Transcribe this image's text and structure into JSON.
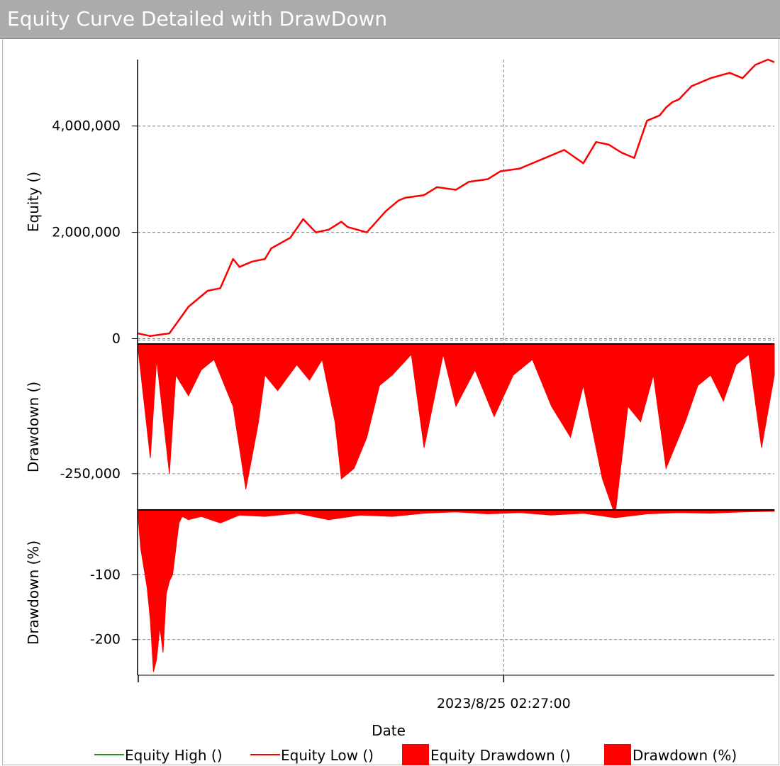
{
  "window": {
    "title": "Equity Curve Detailed with DrawDown"
  },
  "chart_data": {
    "type": "line",
    "xlabel": "Date",
    "x_ticks": [
      "2023/8/25 02:27:00"
    ],
    "legend_position": "bottom",
    "legend": [
      {
        "name": "Equity High ()",
        "color": "#2e8b2e",
        "marker": "line"
      },
      {
        "name": "Equity Low ()",
        "color": "#ff0000",
        "marker": "line"
      },
      {
        "name": "Equity Drawdown ()",
        "color": "#ff0000",
        "marker": "box"
      },
      {
        "name": "Drawdown (%)",
        "color": "#ff0000",
        "marker": "box"
      }
    ],
    "panels": [
      {
        "name": "equity",
        "ylabel": "Equity ()",
        "type": "line",
        "ylim": [
          -100000,
          5250000
        ],
        "yticks": [
          0,
          2000000,
          4000000
        ],
        "ytick_labels": [
          "0",
          "2,000,000",
          "4,000,000"
        ],
        "grid": true,
        "series": [
          {
            "name": "Equity Low ()",
            "color": "#ff0000",
            "x": [
              0,
              0.02,
              0.05,
              0.08,
              0.11,
              0.13,
              0.15,
              0.16,
              0.18,
              0.2,
              0.21,
              0.24,
              0.26,
              0.28,
              0.3,
              0.32,
              0.33,
              0.36,
              0.39,
              0.41,
              0.42,
              0.45,
              0.47,
              0.5,
              0.52,
              0.55,
              0.57,
              0.6,
              0.64,
              0.67,
              0.7,
              0.72,
              0.74,
              0.76,
              0.78,
              0.8,
              0.82,
              0.83,
              0.84,
              0.85,
              0.87,
              0.9,
              0.93,
              0.95,
              0.97,
              0.99,
              1.0
            ],
            "y": [
              100000,
              50000,
              100000,
              600000,
              900000,
              950000,
              1500000,
              1350000,
              1450000,
              1500000,
              1700000,
              1900000,
              2250000,
              2000000,
              2050000,
              2200000,
              2100000,
              2000000,
              2400000,
              2600000,
              2650000,
              2700000,
              2850000,
              2800000,
              2950000,
              3000000,
              3150000,
              3200000,
              3400000,
              3550000,
              3300000,
              3700000,
              3650000,
              3500000,
              3400000,
              4100000,
              4200000,
              4350000,
              4450000,
              4500000,
              4750000,
              4900000,
              5000000,
              4900000,
              5150000,
              5250000,
              5200000
            ]
          }
        ]
      },
      {
        "name": "drawdown",
        "ylabel": "Drawdown ()",
        "type": "area",
        "ylim": [
          -320000,
          0
        ],
        "yticks": [
          -250000
        ],
        "ytick_labels": [
          "-250,000"
        ],
        "grid": true,
        "series": [
          {
            "name": "Equity Drawdown ()",
            "color": "#ff0000",
            "x": [
              0,
              0.02,
              0.03,
              0.05,
              0.06,
              0.08,
              0.1,
              0.12,
              0.15,
              0.17,
              0.19,
              0.2,
              0.22,
              0.25,
              0.27,
              0.29,
              0.31,
              0.32,
              0.34,
              0.36,
              0.38,
              0.4,
              0.43,
              0.45,
              0.48,
              0.5,
              0.53,
              0.56,
              0.59,
              0.62,
              0.65,
              0.68,
              0.7,
              0.73,
              0.75,
              0.77,
              0.79,
              0.81,
              0.83,
              0.86,
              0.88,
              0.9,
              0.92,
              0.94,
              0.96,
              0.98,
              1.0
            ],
            "y": [
              0,
              -220000,
              -30000,
              -250000,
              -60000,
              -100000,
              -50000,
              -30000,
              -120000,
              -280000,
              -150000,
              -60000,
              -90000,
              -40000,
              -70000,
              -30000,
              -150000,
              -260000,
              -240000,
              -180000,
              -80000,
              -60000,
              -20000,
              -200000,
              -20000,
              -120000,
              -50000,
              -140000,
              -60000,
              -30000,
              -120000,
              -180000,
              -80000,
              -260000,
              -330000,
              -120000,
              -150000,
              -60000,
              -240000,
              -150000,
              -80000,
              -60000,
              -110000,
              -40000,
              -20000,
              -200000,
              -60000
            ]
          }
        ]
      },
      {
        "name": "drawdown_pct",
        "ylabel": "Drawdown (%)",
        "type": "area",
        "ylim": [
          -255,
          0
        ],
        "yticks": [
          -100,
          -200
        ],
        "ytick_labels": [
          "-100",
          "-200"
        ],
        "grid": true,
        "series": [
          {
            "name": "Drawdown (%)",
            "color": "#ff0000",
            "x": [
              0,
              0.005,
              0.01,
              0.015,
              0.02,
              0.025,
              0.03,
              0.035,
              0.04,
              0.045,
              0.05,
              0.055,
              0.06,
              0.065,
              0.07,
              0.08,
              0.1,
              0.13,
              0.16,
              0.2,
              0.25,
              0.3,
              0.35,
              0.4,
              0.45,
              0.5,
              0.55,
              0.6,
              0.65,
              0.7,
              0.75,
              0.8,
              0.85,
              0.9,
              0.95,
              1.0
            ],
            "y": [
              0,
              -60,
              -90,
              -120,
              -170,
              -250,
              -230,
              -180,
              -220,
              -130,
              -110,
              -100,
              -60,
              -20,
              -10,
              -15,
              -10,
              -20,
              -8,
              -10,
              -5,
              -15,
              -8,
              -10,
              -5,
              -3,
              -6,
              -4,
              -8,
              -5,
              -12,
              -6,
              -4,
              -5,
              -3,
              -2
            ]
          }
        ]
      }
    ]
  }
}
